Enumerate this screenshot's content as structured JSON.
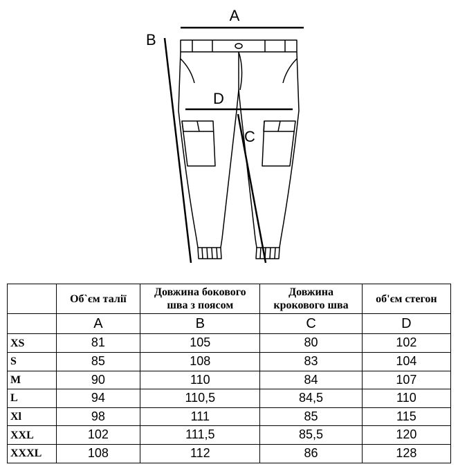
{
  "diagram": {
    "labels": {
      "A": "A",
      "B": "B",
      "C": "C",
      "D": "D"
    },
    "stroke_color": "#000000",
    "measure_line_width": 2.5,
    "outline_line_width": 1.5,
    "background_color": "#ffffff"
  },
  "table": {
    "headers": {
      "size": "",
      "A": "Об`єм талії",
      "B": "Довжина бокового шва з поясом",
      "C": "Довжина крокового шва",
      "D": "об'єм стегон"
    },
    "letter_row": [
      "",
      "A",
      "B",
      "C",
      "D"
    ],
    "rows": [
      {
        "size": "XS",
        "A": "81",
        "B": "105",
        "C": "80",
        "D": "102"
      },
      {
        "size": "S",
        "A": "85",
        "B": "108",
        "C": "83",
        "D": "104"
      },
      {
        "size": "M",
        "A": "90",
        "B": "110",
        "C": "84",
        "D": "107"
      },
      {
        "size": "L",
        "A": "94",
        "B": "110,5",
        "C": "84,5",
        "D": "110"
      },
      {
        "size": "Xl",
        "A": "98",
        "B": "111",
        "C": "85",
        "D": "115"
      },
      {
        "size": "XXL",
        "A": "102",
        "B": "111,5",
        "C": "85,5",
        "D": "120"
      },
      {
        "size": "XXXL",
        "A": "108",
        "B": "112",
        "C": "86",
        "D": "128"
      }
    ],
    "border_color": "#000000",
    "header_fontsize": 16,
    "letter_fontsize": 20,
    "data_fontsize": 18
  }
}
